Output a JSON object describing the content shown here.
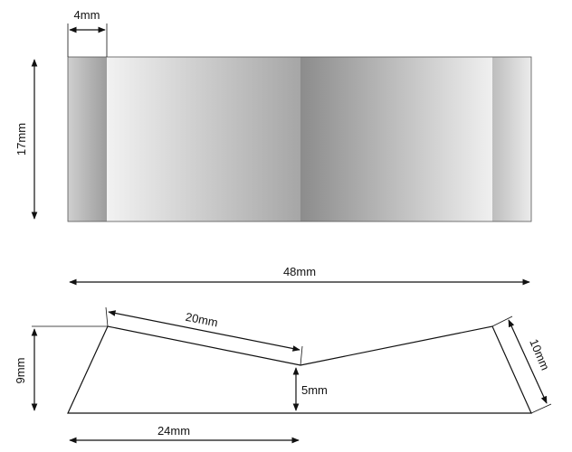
{
  "dimensions": {
    "top_width": "4mm",
    "height_front": "17mm",
    "total_length": "48mm",
    "slope_length": "20mm",
    "left_height": "9mm",
    "center_height": "5mm",
    "right_slope": "10mm",
    "half_base": "24mm"
  },
  "colors": {
    "line": "#111111",
    "panel_light": "#e8e8e8",
    "panel_dark": "#8f8f8f"
  }
}
